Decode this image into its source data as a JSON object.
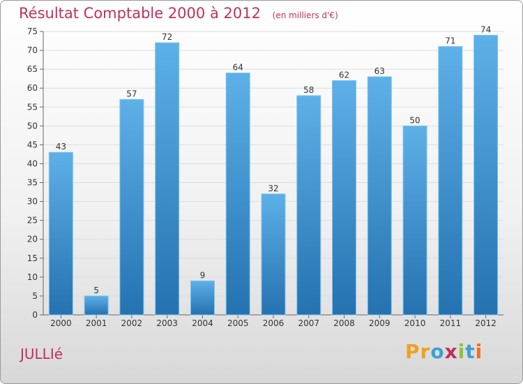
{
  "title": "Résultat Comptable 2000 à 2012",
  "subtitle": "(en milliers d'€)",
  "place": "JULLIé",
  "logo": {
    "letters": [
      "P",
      "r",
      "o",
      "x",
      "i",
      "t",
      "i"
    ],
    "colors": [
      "#f0a020",
      "#f0a020",
      "#3aa0d8",
      "#c0305a",
      "#8fc43a",
      "#3aa0d8",
      "#f07020"
    ]
  },
  "colors": {
    "bar_light": "#5eb0e8",
    "bar_dark": "#2472b0",
    "title": "#c0305a"
  },
  "chart_data": {
    "type": "bar",
    "title": "Résultat Comptable 2000 à 2012",
    "xlabel": "",
    "ylabel": "",
    "categories": [
      "2000",
      "2001",
      "2002",
      "2003",
      "2004",
      "2005",
      "2006",
      "2007",
      "2008",
      "2009",
      "2010",
      "2011",
      "2012"
    ],
    "values": [
      43,
      5,
      57,
      72,
      9,
      64,
      32,
      58,
      62,
      63,
      50,
      71,
      74
    ],
    "ylim": [
      0,
      75
    ],
    "yticks": [
      0,
      5,
      10,
      15,
      20,
      25,
      30,
      35,
      40,
      45,
      50,
      55,
      60,
      65,
      70,
      75
    ],
    "grid": true
  }
}
